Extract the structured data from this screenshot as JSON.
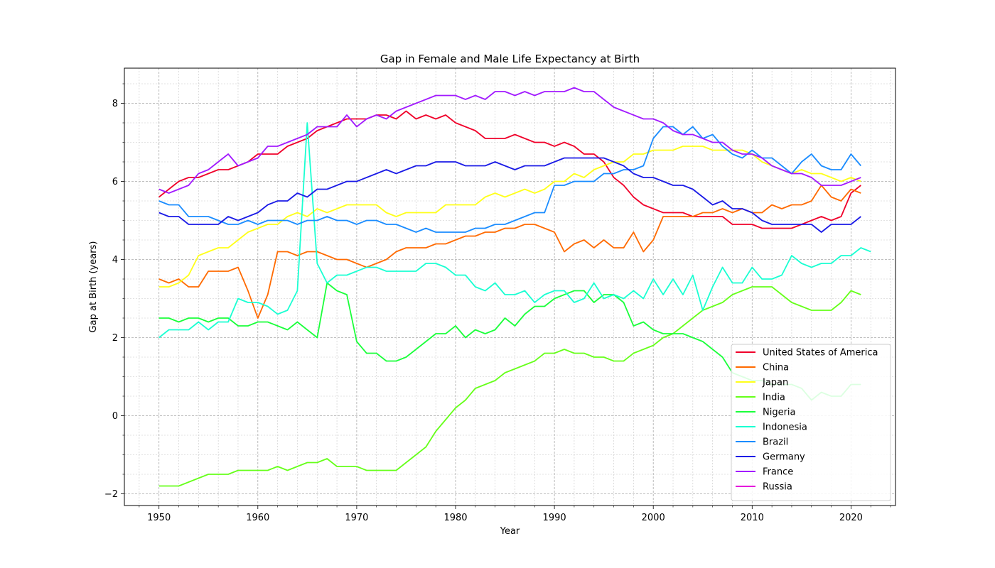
{
  "chart_data": {
    "type": "line",
    "title": "Gap in Female and Male Life Expectancy at Birth",
    "xlabel": "Year",
    "ylabel": "Gap at Birth (years)",
    "xlim": [
      1946.5,
      2024.5
    ],
    "ylim": [
      -2.3,
      8.9
    ],
    "x_ticks": [
      1950,
      1960,
      1970,
      1980,
      1990,
      2000,
      2010,
      2020
    ],
    "y_ticks": [
      -2,
      0,
      2,
      4,
      6,
      8
    ],
    "grid": true,
    "minor_grid": true,
    "legend_position": "lower-right",
    "x_start": 1950,
    "series": [
      {
        "name": "United States of America",
        "color": "#f0002a",
        "values": [
          5.6,
          5.8,
          6.0,
          6.1,
          6.1,
          6.2,
          6.3,
          6.3,
          6.4,
          6.5,
          6.7,
          6.7,
          6.7,
          6.9,
          7.0,
          7.1,
          7.3,
          7.4,
          7.5,
          7.6,
          7.6,
          7.6,
          7.7,
          7.7,
          7.6,
          7.8,
          7.6,
          7.7,
          7.6,
          7.7,
          7.5,
          7.4,
          7.3,
          7.1,
          7.1,
          7.1,
          7.2,
          7.1,
          7.0,
          7.0,
          6.9,
          7.0,
          6.9,
          6.7,
          6.7,
          6.5,
          6.1,
          5.9,
          5.6,
          5.4,
          5.3,
          5.2,
          5.2,
          5.2,
          5.1,
          5.1,
          5.1,
          5.1,
          4.9,
          4.9,
          4.9,
          4.8,
          4.8,
          4.8,
          4.8,
          4.9,
          5.0,
          5.1,
          5.0,
          5.1,
          5.7,
          5.9
        ]
      },
      {
        "name": "China",
        "color": "#ff6a00",
        "values": [
          3.5,
          3.4,
          3.5,
          3.3,
          3.3,
          3.7,
          3.7,
          3.7,
          3.8,
          3.2,
          2.5,
          3.1,
          4.2,
          4.2,
          4.1,
          4.2,
          4.2,
          4.1,
          4.0,
          4.0,
          3.9,
          3.8,
          3.9,
          4.0,
          4.2,
          4.3,
          4.3,
          4.3,
          4.4,
          4.4,
          4.5,
          4.6,
          4.6,
          4.7,
          4.7,
          4.8,
          4.8,
          4.9,
          4.9,
          4.8,
          4.7,
          4.2,
          4.4,
          4.5,
          4.3,
          4.5,
          4.3,
          4.3,
          4.7,
          4.2,
          4.5,
          5.1,
          5.1,
          5.1,
          5.1,
          5.2,
          5.2,
          5.3,
          5.2,
          5.3,
          5.2,
          5.2,
          5.4,
          5.3,
          5.4,
          5.4,
          5.5,
          5.9,
          5.6,
          5.5,
          5.8,
          5.7
        ]
      },
      {
        "name": "Japan",
        "color": "#ffff1a",
        "values": [
          3.3,
          3.3,
          3.4,
          3.6,
          4.1,
          4.2,
          4.3,
          4.3,
          4.5,
          4.7,
          4.8,
          4.9,
          4.9,
          5.1,
          5.2,
          5.1,
          5.3,
          5.2,
          5.3,
          5.4,
          5.4,
          5.4,
          5.4,
          5.2,
          5.1,
          5.2,
          5.2,
          5.2,
          5.2,
          5.4,
          5.4,
          5.4,
          5.4,
          5.6,
          5.7,
          5.6,
          5.7,
          5.8,
          5.7,
          5.8,
          6.0,
          6.0,
          6.2,
          6.1,
          6.3,
          6.4,
          6.5,
          6.5,
          6.7,
          6.7,
          6.8,
          6.8,
          6.8,
          6.9,
          6.9,
          6.9,
          6.8,
          6.8,
          6.8,
          6.8,
          6.7,
          6.5,
          6.4,
          6.3,
          6.2,
          6.3,
          6.2,
          6.2,
          6.1,
          6.0,
          6.1,
          6.0
        ]
      },
      {
        "name": "India",
        "color": "#66ff1a",
        "values": [
          -1.8,
          -1.8,
          -1.8,
          -1.7,
          -1.6,
          -1.5,
          -1.5,
          -1.5,
          -1.4,
          -1.4,
          -1.4,
          -1.4,
          -1.3,
          -1.4,
          -1.3,
          -1.2,
          -1.2,
          -1.1,
          -1.3,
          -1.3,
          -1.3,
          -1.4,
          -1.4,
          -1.4,
          -1.4,
          -1.2,
          -1.0,
          -0.8,
          -0.4,
          -0.1,
          0.2,
          0.4,
          0.7,
          0.8,
          0.9,
          1.1,
          1.2,
          1.3,
          1.4,
          1.6,
          1.6,
          1.7,
          1.6,
          1.6,
          1.5,
          1.5,
          1.4,
          1.4,
          1.6,
          1.7,
          1.8,
          2.0,
          2.1,
          2.3,
          2.5,
          2.7,
          2.8,
          2.9,
          3.1,
          3.2,
          3.3,
          3.3,
          3.3,
          3.1,
          2.9,
          2.8,
          2.7,
          2.7,
          2.7,
          2.9,
          3.2,
          3.1
        ]
      },
      {
        "name": "Nigeria",
        "color": "#1aff3a",
        "values": [
          2.5,
          2.5,
          2.4,
          2.5,
          2.5,
          2.4,
          2.5,
          2.5,
          2.3,
          2.3,
          2.4,
          2.4,
          2.3,
          2.2,
          2.4,
          2.2,
          2.0,
          3.4,
          3.2,
          3.1,
          1.9,
          1.6,
          1.6,
          1.4,
          1.4,
          1.5,
          1.7,
          1.9,
          2.1,
          2.1,
          2.3,
          2.0,
          2.2,
          2.1,
          2.2,
          2.5,
          2.3,
          2.6,
          2.8,
          2.8,
          3.0,
          3.1,
          3.2,
          3.2,
          2.9,
          3.1,
          3.1,
          2.9,
          2.3,
          2.4,
          2.2,
          2.1,
          2.1,
          2.1,
          2.0,
          1.9,
          1.7,
          1.5,
          1.1,
          1.0,
          0.9,
          0.9,
          0.8,
          0.8,
          0.8,
          0.7,
          0.4,
          0.6,
          0.5,
          0.5,
          0.8,
          0.8
        ]
      },
      {
        "name": "Indonesia",
        "color": "#1affd2",
        "values": [
          2.0,
          2.2,
          2.2,
          2.2,
          2.4,
          2.2,
          2.4,
          2.4,
          3.0,
          2.9,
          2.9,
          2.8,
          2.6,
          2.7,
          3.2,
          7.5,
          3.9,
          3.4,
          3.6,
          3.6,
          3.7,
          3.8,
          3.8,
          3.7,
          3.7,
          3.7,
          3.7,
          3.9,
          3.9,
          3.8,
          3.6,
          3.6,
          3.3,
          3.2,
          3.4,
          3.1,
          3.1,
          3.2,
          2.9,
          3.1,
          3.2,
          3.2,
          2.9,
          3.0,
          3.4,
          3.0,
          3.1,
          3.0,
          3.2,
          3.0,
          3.5,
          3.1,
          3.5,
          3.1,
          3.6,
          2.7,
          3.3,
          3.8,
          3.4,
          3.4,
          3.8,
          3.5,
          3.5,
          3.6,
          4.1,
          3.9,
          3.8,
          3.9,
          3.9,
          4.1,
          4.1,
          4.3,
          4.2
        ]
      },
      {
        "name": "Brazil",
        "color": "#1a8cff",
        "values": [
          5.5,
          5.4,
          5.4,
          5.1,
          5.1,
          5.1,
          5.0,
          4.9,
          4.9,
          5.0,
          4.9,
          5.0,
          5.0,
          5.0,
          4.9,
          5.0,
          5.0,
          5.1,
          5.0,
          5.0,
          4.9,
          5.0,
          5.0,
          4.9,
          4.9,
          4.8,
          4.7,
          4.8,
          4.7,
          4.7,
          4.7,
          4.7,
          4.8,
          4.8,
          4.9,
          4.9,
          5.0,
          5.1,
          5.2,
          5.2,
          5.9,
          5.9,
          6.0,
          6.0,
          6.0,
          6.2,
          6.2,
          6.3,
          6.3,
          6.4,
          7.1,
          7.4,
          7.4,
          7.2,
          7.4,
          7.1,
          7.2,
          6.9,
          6.7,
          6.6,
          6.8,
          6.6,
          6.6,
          6.4,
          6.2,
          6.5,
          6.7,
          6.4,
          6.3,
          6.3,
          6.7,
          6.4
        ]
      },
      {
        "name": "Germany",
        "color": "#1a1ae6",
        "values": [
          5.2,
          5.1,
          5.1,
          4.9,
          4.9,
          4.9,
          4.9,
          5.1,
          5.0,
          5.1,
          5.2,
          5.4,
          5.5,
          5.5,
          5.7,
          5.6,
          5.8,
          5.8,
          5.9,
          6.0,
          6.0,
          6.1,
          6.2,
          6.3,
          6.2,
          6.3,
          6.4,
          6.4,
          6.5,
          6.5,
          6.5,
          6.4,
          6.4,
          6.4,
          6.5,
          6.4,
          6.3,
          6.4,
          6.4,
          6.4,
          6.5,
          6.6,
          6.6,
          6.6,
          6.6,
          6.6,
          6.5,
          6.4,
          6.2,
          6.1,
          6.1,
          6.0,
          5.9,
          5.9,
          5.8,
          5.6,
          5.4,
          5.5,
          5.3,
          5.3,
          5.2,
          5.0,
          4.9,
          4.9,
          4.9,
          4.9,
          4.9,
          4.7,
          4.9,
          4.9,
          4.9,
          5.1
        ]
      },
      {
        "name": "France",
        "color": "#a21aff",
        "values": [
          5.8,
          5.7,
          5.8,
          5.9,
          6.2,
          6.3,
          6.5,
          6.7,
          6.4,
          6.5,
          6.6,
          6.9,
          6.9,
          7.0,
          7.1,
          7.2,
          7.4,
          7.4,
          7.4,
          7.7,
          7.4,
          7.6,
          7.7,
          7.6,
          7.8,
          7.9,
          8.0,
          8.1,
          8.2,
          8.2,
          8.2,
          8.1,
          8.2,
          8.1,
          8.3,
          8.3,
          8.2,
          8.3,
          8.2,
          8.3,
          8.3,
          8.3,
          8.4,
          8.3,
          8.3,
          8.1,
          7.9,
          7.8,
          7.7,
          7.6,
          7.6,
          7.5,
          7.3,
          7.2,
          7.2,
          7.1,
          7.0,
          7.0,
          6.8,
          6.7,
          6.7,
          6.6,
          6.4,
          6.3,
          6.2,
          6.2,
          6.1,
          5.9,
          5.9,
          5.9,
          6.0,
          6.1
        ]
      },
      {
        "name": "Russia",
        "color": "#e61adc",
        "values": []
      }
    ]
  }
}
